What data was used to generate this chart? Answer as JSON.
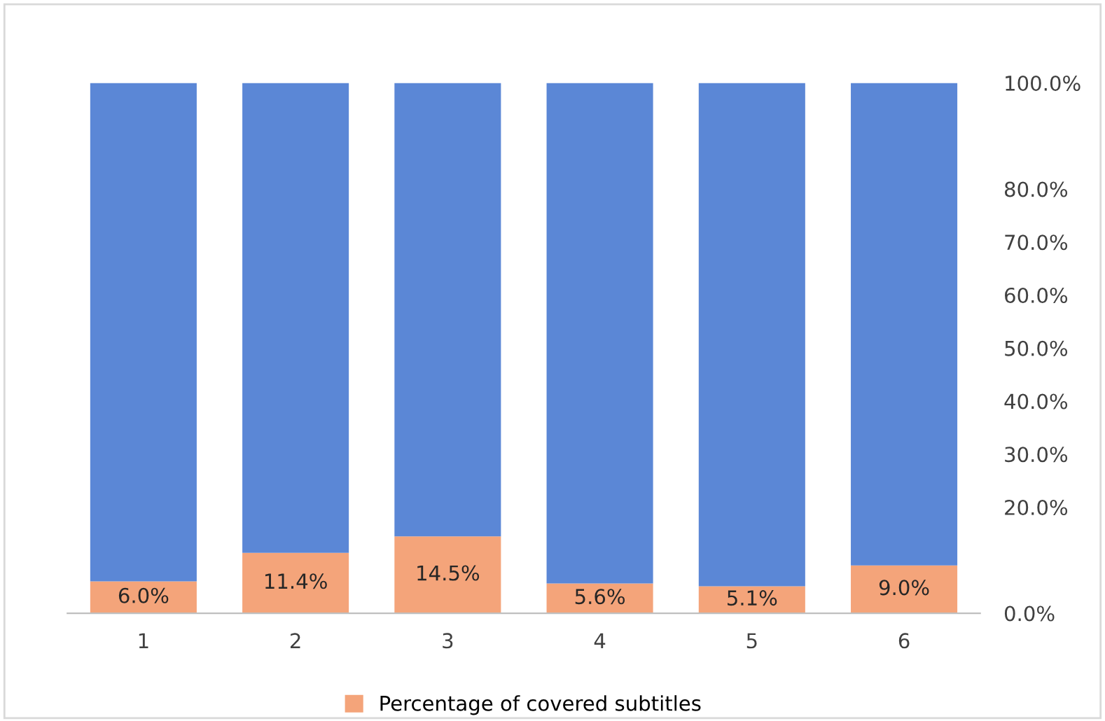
{
  "chart_data": {
    "type": "bar",
    "stacked": true,
    "categories": [
      "1",
      "2",
      "3",
      "4",
      "5",
      "6"
    ],
    "series": [
      {
        "name": "Percentage of covered subtitles",
        "color": "#f4a47a",
        "values": [
          6.0,
          11.4,
          14.5,
          5.6,
          5.1,
          9.0
        ],
        "value_labels": [
          "6.0%",
          "11.4%",
          "14.5%",
          "5.6%",
          "5.1%",
          "9.0%"
        ]
      },
      {
        "color": "#5b87d6",
        "values": [
          94.0,
          88.6,
          85.5,
          94.4,
          94.9,
          91.0
        ]
      }
    ],
    "ylim": [
      0,
      100
    ],
    "yticks": [
      {
        "value": 0,
        "label": "0.0%"
      },
      {
        "value": 20,
        "label": "20.0%"
      },
      {
        "value": 30,
        "label": "30.0%"
      },
      {
        "value": 40,
        "label": "40.0%"
      },
      {
        "value": 50,
        "label": "50.0%"
      },
      {
        "value": 60,
        "label": "60.0%"
      },
      {
        "value": 70,
        "label": "70.0%"
      },
      {
        "value": 80,
        "label": "80.0%"
      },
      {
        "value": 100,
        "label": "100.0%"
      }
    ],
    "grid": false,
    "legend": "bottom"
  }
}
